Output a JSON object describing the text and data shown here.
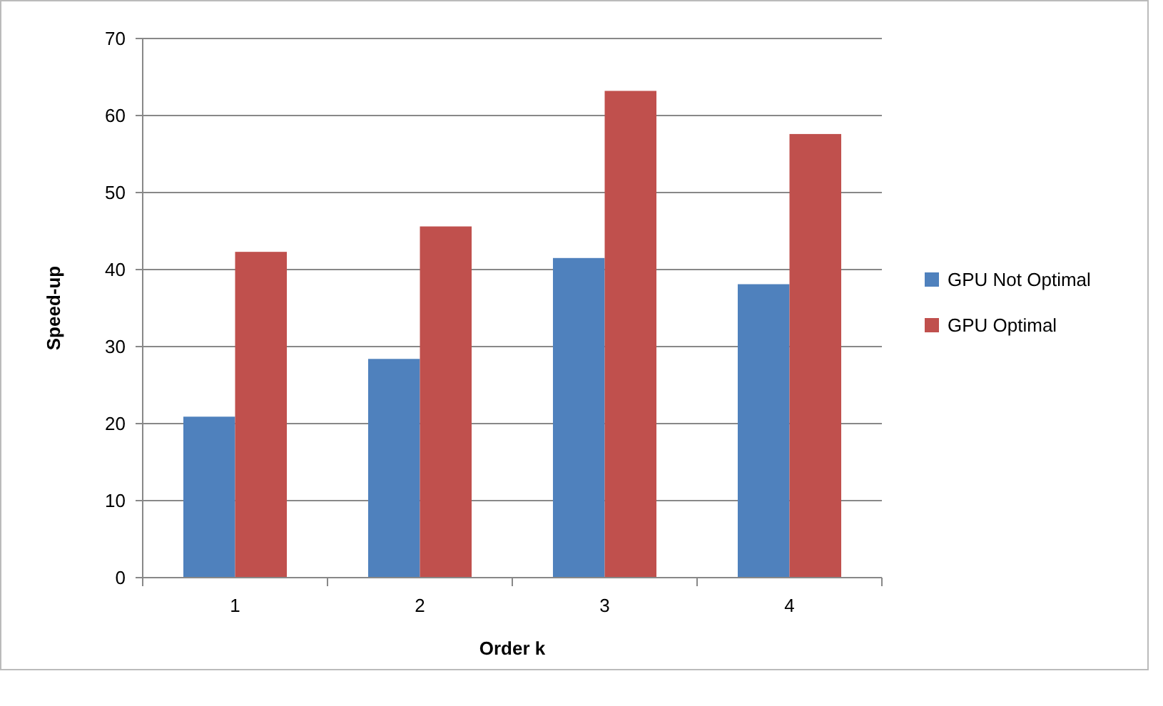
{
  "chart_data": {
    "type": "bar",
    "xlabel": "Order k",
    "ylabel": "Speed-up",
    "categories": [
      "1",
      "2",
      "3",
      "4"
    ],
    "series": [
      {
        "name": "GPU Not Optimal",
        "color": "#4f81bd",
        "values": [
          20.9,
          28.4,
          41.5,
          38.1
        ]
      },
      {
        "name": "GPU Optimal",
        "color": "#c0504d",
        "values": [
          42.3,
          45.6,
          63.2,
          57.6
        ]
      }
    ],
    "ylim": [
      0,
      70
    ],
    "yticks": [
      0,
      10,
      20,
      30,
      40,
      50,
      60,
      70
    ],
    "grid": "y",
    "legend": "right"
  }
}
